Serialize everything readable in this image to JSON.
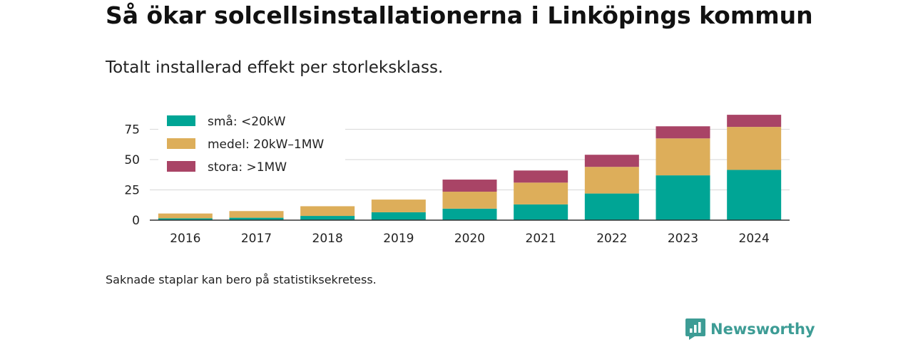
{
  "header": {
    "title": "Så ökar solcellsinstallationerna i Linköpings kommun",
    "subtitle": "Totalt installerad effekt per storleksklass."
  },
  "footnote": "Saknade staplar kan bero på statistiksekretess.",
  "brand": {
    "name": "Newsworthy",
    "icon": "newsworthy-logo-icon",
    "color": "#3d9c95"
  },
  "chart_data": {
    "type": "bar",
    "stacked": true,
    "title": "",
    "xlabel": "",
    "ylabel": "",
    "categories": [
      "2016",
      "2017",
      "2018",
      "2019",
      "2020",
      "2021",
      "2022",
      "2023",
      "2024"
    ],
    "ylim": [
      0,
      87
    ],
    "yticks": [
      0,
      25,
      50,
      75
    ],
    "grid": true,
    "legend_position": "top-left",
    "series": [
      {
        "name": "små: <20kW",
        "color": "#00a595",
        "values": [
          1.5,
          2,
          3.5,
          6.5,
          9.5,
          13,
          22,
          37,
          41.5
        ]
      },
      {
        "name": "medel: 20kW–1MW",
        "color": "#ddae5a",
        "values": [
          4,
          5.5,
          8,
          10.5,
          14,
          18,
          22,
          30.5,
          35.5
        ]
      },
      {
        "name": "stora: >1MW",
        "color": "#a94466",
        "values": [
          0,
          0,
          0,
          0,
          10,
          10,
          10,
          10,
          10
        ]
      }
    ]
  }
}
